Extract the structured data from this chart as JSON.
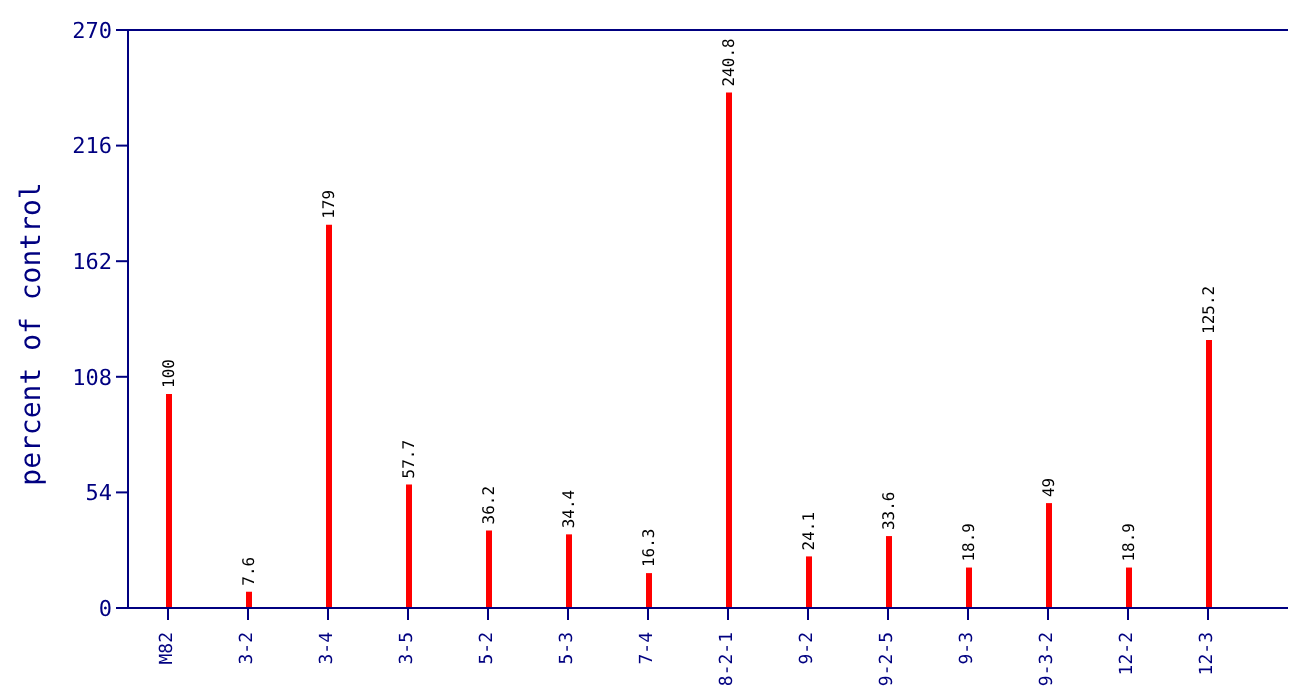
{
  "chart_data": {
    "type": "bar",
    "ylabel": "percent of control",
    "categories": [
      "M82",
      "3-2",
      "3-4",
      "3-5",
      "5-2",
      "5-3",
      "7-4",
      "8-2-1",
      "9-2",
      "9-2-5",
      "9-3",
      "9-3-2",
      "12-2",
      "12-3"
    ],
    "values": [
      100,
      7.6,
      179,
      57.7,
      36.2,
      34.4,
      16.3,
      240.8,
      24.1,
      33.6,
      18.9,
      49,
      18.9,
      125.2
    ],
    "color": "#ff0000",
    "ylim": [
      0,
      270
    ],
    "yticks": [
      0,
      54,
      108,
      162,
      216,
      270
    ],
    "grid": false,
    "data_labels": true
  }
}
